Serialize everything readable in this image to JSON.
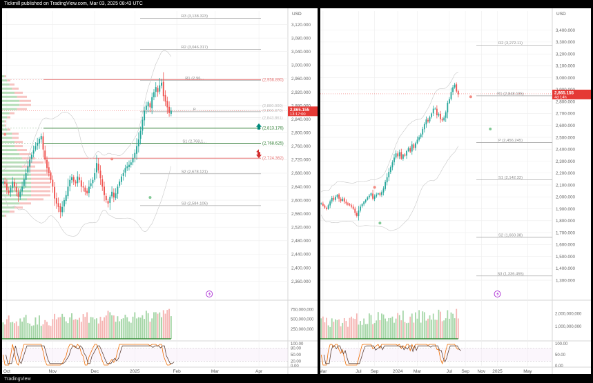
{
  "header": {
    "publisher_text": "Tickmill published on TradingView.com, Mar 03, 2025 08:43 UTC"
  },
  "footer": {
    "logo_text": "TradingView"
  },
  "colors": {
    "up": "#26a69a",
    "up_vol": "#a5d6a7",
    "down": "#ef5350",
    "down_vol": "#f5b5b3",
    "grid": "#eeeeee",
    "level": "#9e9e9e",
    "res": "#e57373",
    "sup": "#2e7d32",
    "stoch_k": "#ef6c00",
    "stoch_d": "#5d4037"
  },
  "charts": [
    {
      "id": "daily",
      "price_axis": {
        "currency": "USD",
        "min": 2310,
        "max": 3160,
        "ticks": [
          "2,360.000",
          "2,400.000",
          "2,440.000",
          "2,480.000",
          "2,520.000",
          "2,560.000",
          "2,600.000",
          "2,640.000",
          "2,680.000",
          "2,720.000",
          "2,760.000",
          "2,800.000",
          "2,840.000",
          "2,880.000",
          "2,920.000",
          "2,960.000",
          "3,000.000",
          "3,040.000",
          "3,080.000",
          "3,120.000"
        ]
      },
      "pivots": [
        {
          "label": "R3 (3,138.323)",
          "value": 3138.323
        },
        {
          "label": "R2 (3,046.317)",
          "value": 3046.317
        },
        {
          "label": "R1 (2,96...",
          "value": 2955
        },
        {
          "label": "P",
          "value": 2862
        },
        {
          "label": "S1 (2,768,1...",
          "value": 2768.1
        },
        {
          "label": "S2 (2,678.121)",
          "value": 2678.121
        },
        {
          "label": "S3 (2,584.106)",
          "value": 2584.106
        }
      ],
      "key_levels": [
        {
          "label": "(2,956.890)",
          "value": 2956.89,
          "kind": "res"
        },
        {
          "label": "(2,813.176)",
          "value": 2813.176,
          "kind": "sup",
          "arrow": "up"
        },
        {
          "label": "(2,768.625)",
          "value": 2768.625,
          "kind": "sup"
        },
        {
          "label": "(2,724.362)",
          "value": 2724.362,
          "kind": "res",
          "arrow": "down"
        }
      ],
      "faint_levels": [
        {
          "label": "(2,880.000)",
          "value": 2880.0
        },
        {
          "label": "(2,866.070)",
          "value": 2866.07
        },
        {
          "label": "(2,843.861)",
          "value": 2843.861
        }
      ],
      "price_badge": {
        "price": "2,865.155",
        "countdown": "13:17:00",
        "value": 2865.155
      },
      "closes": [
        2655,
        2648,
        2630,
        2620,
        2636,
        2655,
        2640,
        2625,
        2610,
        2625,
        2640,
        2662,
        2680,
        2700,
        2720,
        2735,
        2748,
        2760,
        2770,
        2782,
        2790,
        2750,
        2720,
        2695,
        2680,
        2660,
        2640,
        2605,
        2590,
        2580,
        2565,
        2580,
        2600,
        2615,
        2640,
        2660,
        2668,
        2655,
        2650,
        2670,
        2660,
        2640,
        2638,
        2625,
        2620,
        2640,
        2650,
        2660,
        2680,
        2710,
        2688,
        2665,
        2640,
        2615,
        2600,
        2590,
        2610,
        2625,
        2608,
        2620,
        2640,
        2655,
        2670,
        2680,
        2695,
        2700,
        2705,
        2712,
        2725,
        2740,
        2760,
        2780,
        2805,
        2838,
        2865,
        2880,
        2890,
        2875,
        2905,
        2920,
        2935,
        2920,
        2940,
        2948,
        2908,
        2892,
        2875,
        2858,
        2865
      ],
      "volume_axis": {
        "ticks": [
          "250,000,000",
          "500,000,000",
          "750,000,000"
        ],
        "max": 900000000
      },
      "stoch_axis": {
        "ticks": [
          "0.00",
          "20.00",
          "50.00",
          "80.00",
          "100.00"
        ]
      },
      "time_axis": {
        "ticks": [
          "Oct",
          "Nov",
          "Dec",
          "2025",
          "Feb",
          "Mar",
          "Apr"
        ],
        "tick_bars": [
          2,
          26,
          48,
          69,
          91,
          111,
          134
        ]
      },
      "total_bars": 150,
      "marker_bars": [
        {
          "bar": 57,
          "value": 2722,
          "kind": "res"
        },
        {
          "bar": 77,
          "value": 2608,
          "kind": "sup"
        },
        {
          "bar": 1,
          "value": 2795,
          "kind": "res"
        }
      ],
      "event_icon_bar": 108
    },
    {
      "id": "weekly",
      "price_axis": {
        "currency": "USD",
        "min": 1150,
        "max": 3560,
        "ticks": [
          "1,300.000",
          "1,400.000",
          "1,500.000",
          "1,600.000",
          "1,700.000",
          "1,800.000",
          "1,900.000",
          "2,000.000",
          "2,100.000",
          "2,200.000",
          "2,300.000",
          "2,400.000",
          "2,500.000",
          "2,600.000",
          "2,700.000",
          "2,800.000",
          "2,900.000",
          "3,000.000",
          "3,100.000",
          "3,200.000",
          "3,300.000",
          "3,400.000"
        ]
      },
      "pivots": [
        {
          "label": "R2 (3,272.11)",
          "value": 3272.11
        },
        {
          "label": "R1 (2,848.185)",
          "value": 2848.185
        },
        {
          "label": "P (2,456.245)",
          "value": 2456.245
        },
        {
          "label": "S1 (2,142.32)",
          "value": 2142.32
        },
        {
          "label": "S2 (1,660.38)",
          "value": 1660.38
        },
        {
          "label": "S3 (1,336.455)",
          "value": 1336.455
        }
      ],
      "price_badge": {
        "price": "2,865.155",
        "countdown": "4d 14h",
        "value": 2865.155
      },
      "closes": [
        1945,
        1925,
        1910,
        1898,
        1930,
        1962,
        1990,
        1975,
        2000,
        2018,
        1985,
        1965,
        1985,
        1960,
        1945,
        1935,
        1930,
        1918,
        1900,
        1865,
        1840,
        1885,
        1918,
        1940,
        1960,
        1975,
        1995,
        2010,
        2030,
        1985,
        2005,
        2020,
        2030,
        2015,
        2040,
        2070,
        2125,
        2165,
        2210,
        2250,
        2290,
        2330,
        2365,
        2340,
        2375,
        2320,
        2355,
        2345,
        2385,
        2408,
        2380,
        2440,
        2410,
        2450,
        2480,
        2500,
        2525,
        2570,
        2610,
        2650,
        2632,
        2668,
        2700,
        2740,
        2740,
        2685,
        2695,
        2652,
        2642,
        2665,
        2710,
        2790,
        2820,
        2880,
        2920,
        2942,
        2885,
        2860
      ],
      "volume_axis": {
        "ticks": [
          "1,000,000,000",
          "2,000,000,000"
        ],
        "max": 2800000000
      },
      "stoch_axis": {
        "ticks": [
          "0.00",
          "50.00",
          "100.00"
        ]
      },
      "time_axis": {
        "ticks": [
          "Mar",
          "Jul",
          "Sep",
          "2024",
          "Mar",
          "Jul",
          "Sep",
          "Nov",
          "2025",
          "May"
        ],
        "tick_bars": [
          1,
          21,
          30,
          43,
          54,
          72,
          81,
          90,
          99,
          116
        ]
      },
      "total_bars": 128,
      "marker_bars": [
        {
          "bar": 30,
          "value": 2080,
          "kind": "res"
        },
        {
          "bar": 33,
          "value": 1780,
          "kind": "sup"
        },
        {
          "bar": 84,
          "value": 2840,
          "kind": "res"
        },
        {
          "bar": 95,
          "value": 2570,
          "kind": "sup"
        }
      ],
      "event_icon_bar": 99
    }
  ]
}
